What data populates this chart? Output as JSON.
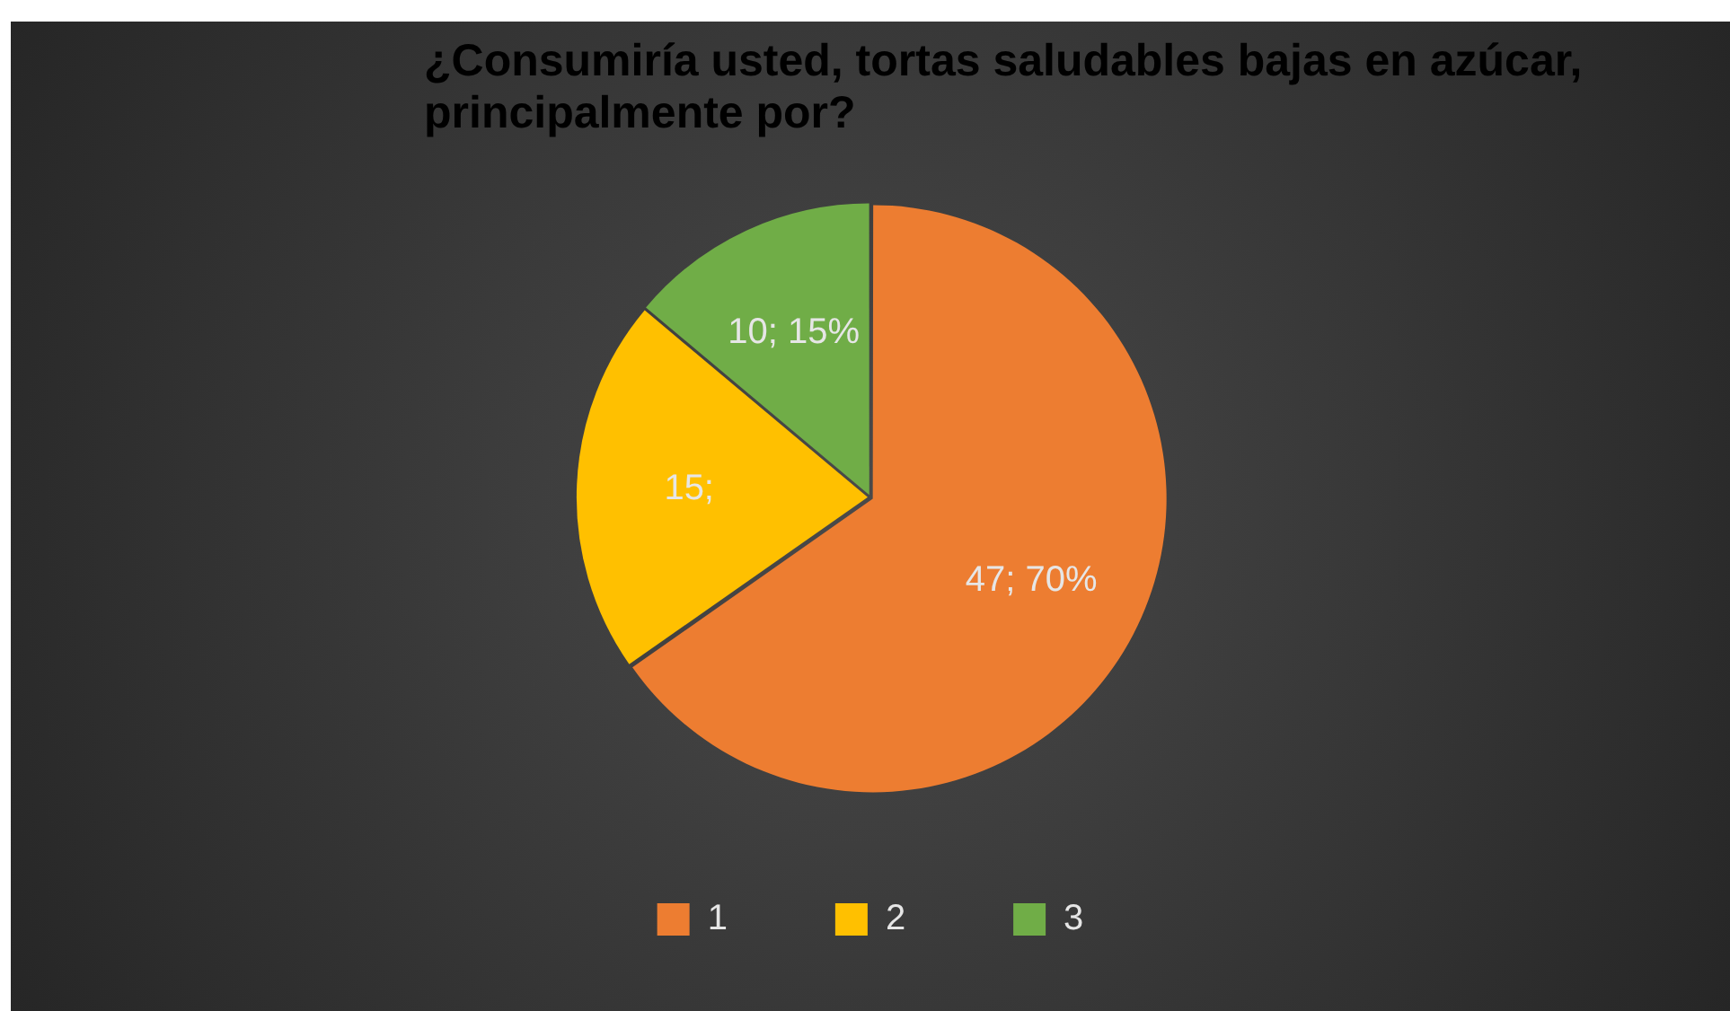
{
  "chart_data": {
    "type": "pie",
    "title": "¿Consumiría usted,  tortas saludables bajas en azúcar, principalmente por?",
    "categories": [
      "1",
      "2",
      "3"
    ],
    "values": [
      47,
      15,
      10
    ],
    "colors": [
      "#ed7d31",
      "#ffc000",
      "#70ad47"
    ],
    "value_labels": [
      "47; 70%",
      "15;",
      "10; 15%"
    ],
    "legend": "bottom"
  }
}
